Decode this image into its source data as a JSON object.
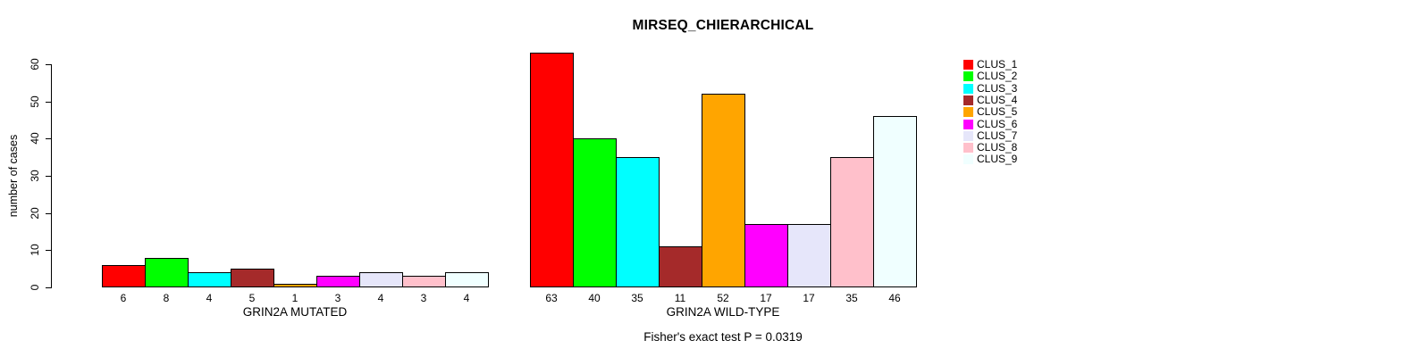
{
  "chart_data": {
    "type": "bar",
    "title": "MIRSEQ_CHIERARCHICAL",
    "ylabel": "number of cases",
    "xlabel": "",
    "footer": "Fisher's exact test P = 0.0319",
    "ylim": [
      0,
      60
    ],
    "yticks": [
      0,
      10,
      20,
      30,
      40,
      50,
      60
    ],
    "grid": false,
    "legend_position": "right",
    "legend": [
      "CLUS_1",
      "CLUS_2",
      "CLUS_3",
      "CLUS_4",
      "CLUS_5",
      "CLUS_6",
      "CLUS_7",
      "CLUS_8",
      "CLUS_9"
    ],
    "colors": [
      "#FF0000",
      "#00FF00",
      "#00FFFF",
      "#A52A2A",
      "#FFA500",
      "#FF00FF",
      "#E6E6FA",
      "#FFC0CB",
      "#F0FFFF"
    ],
    "groups": [
      {
        "label": "GRIN2A MUTATED",
        "values": [
          6,
          8,
          4,
          5,
          1,
          3,
          4,
          3,
          4
        ]
      },
      {
        "label": "GRIN2A WILD-TYPE",
        "values": [
          63,
          40,
          35,
          11,
          52,
          17,
          17,
          35,
          46
        ]
      }
    ]
  }
}
